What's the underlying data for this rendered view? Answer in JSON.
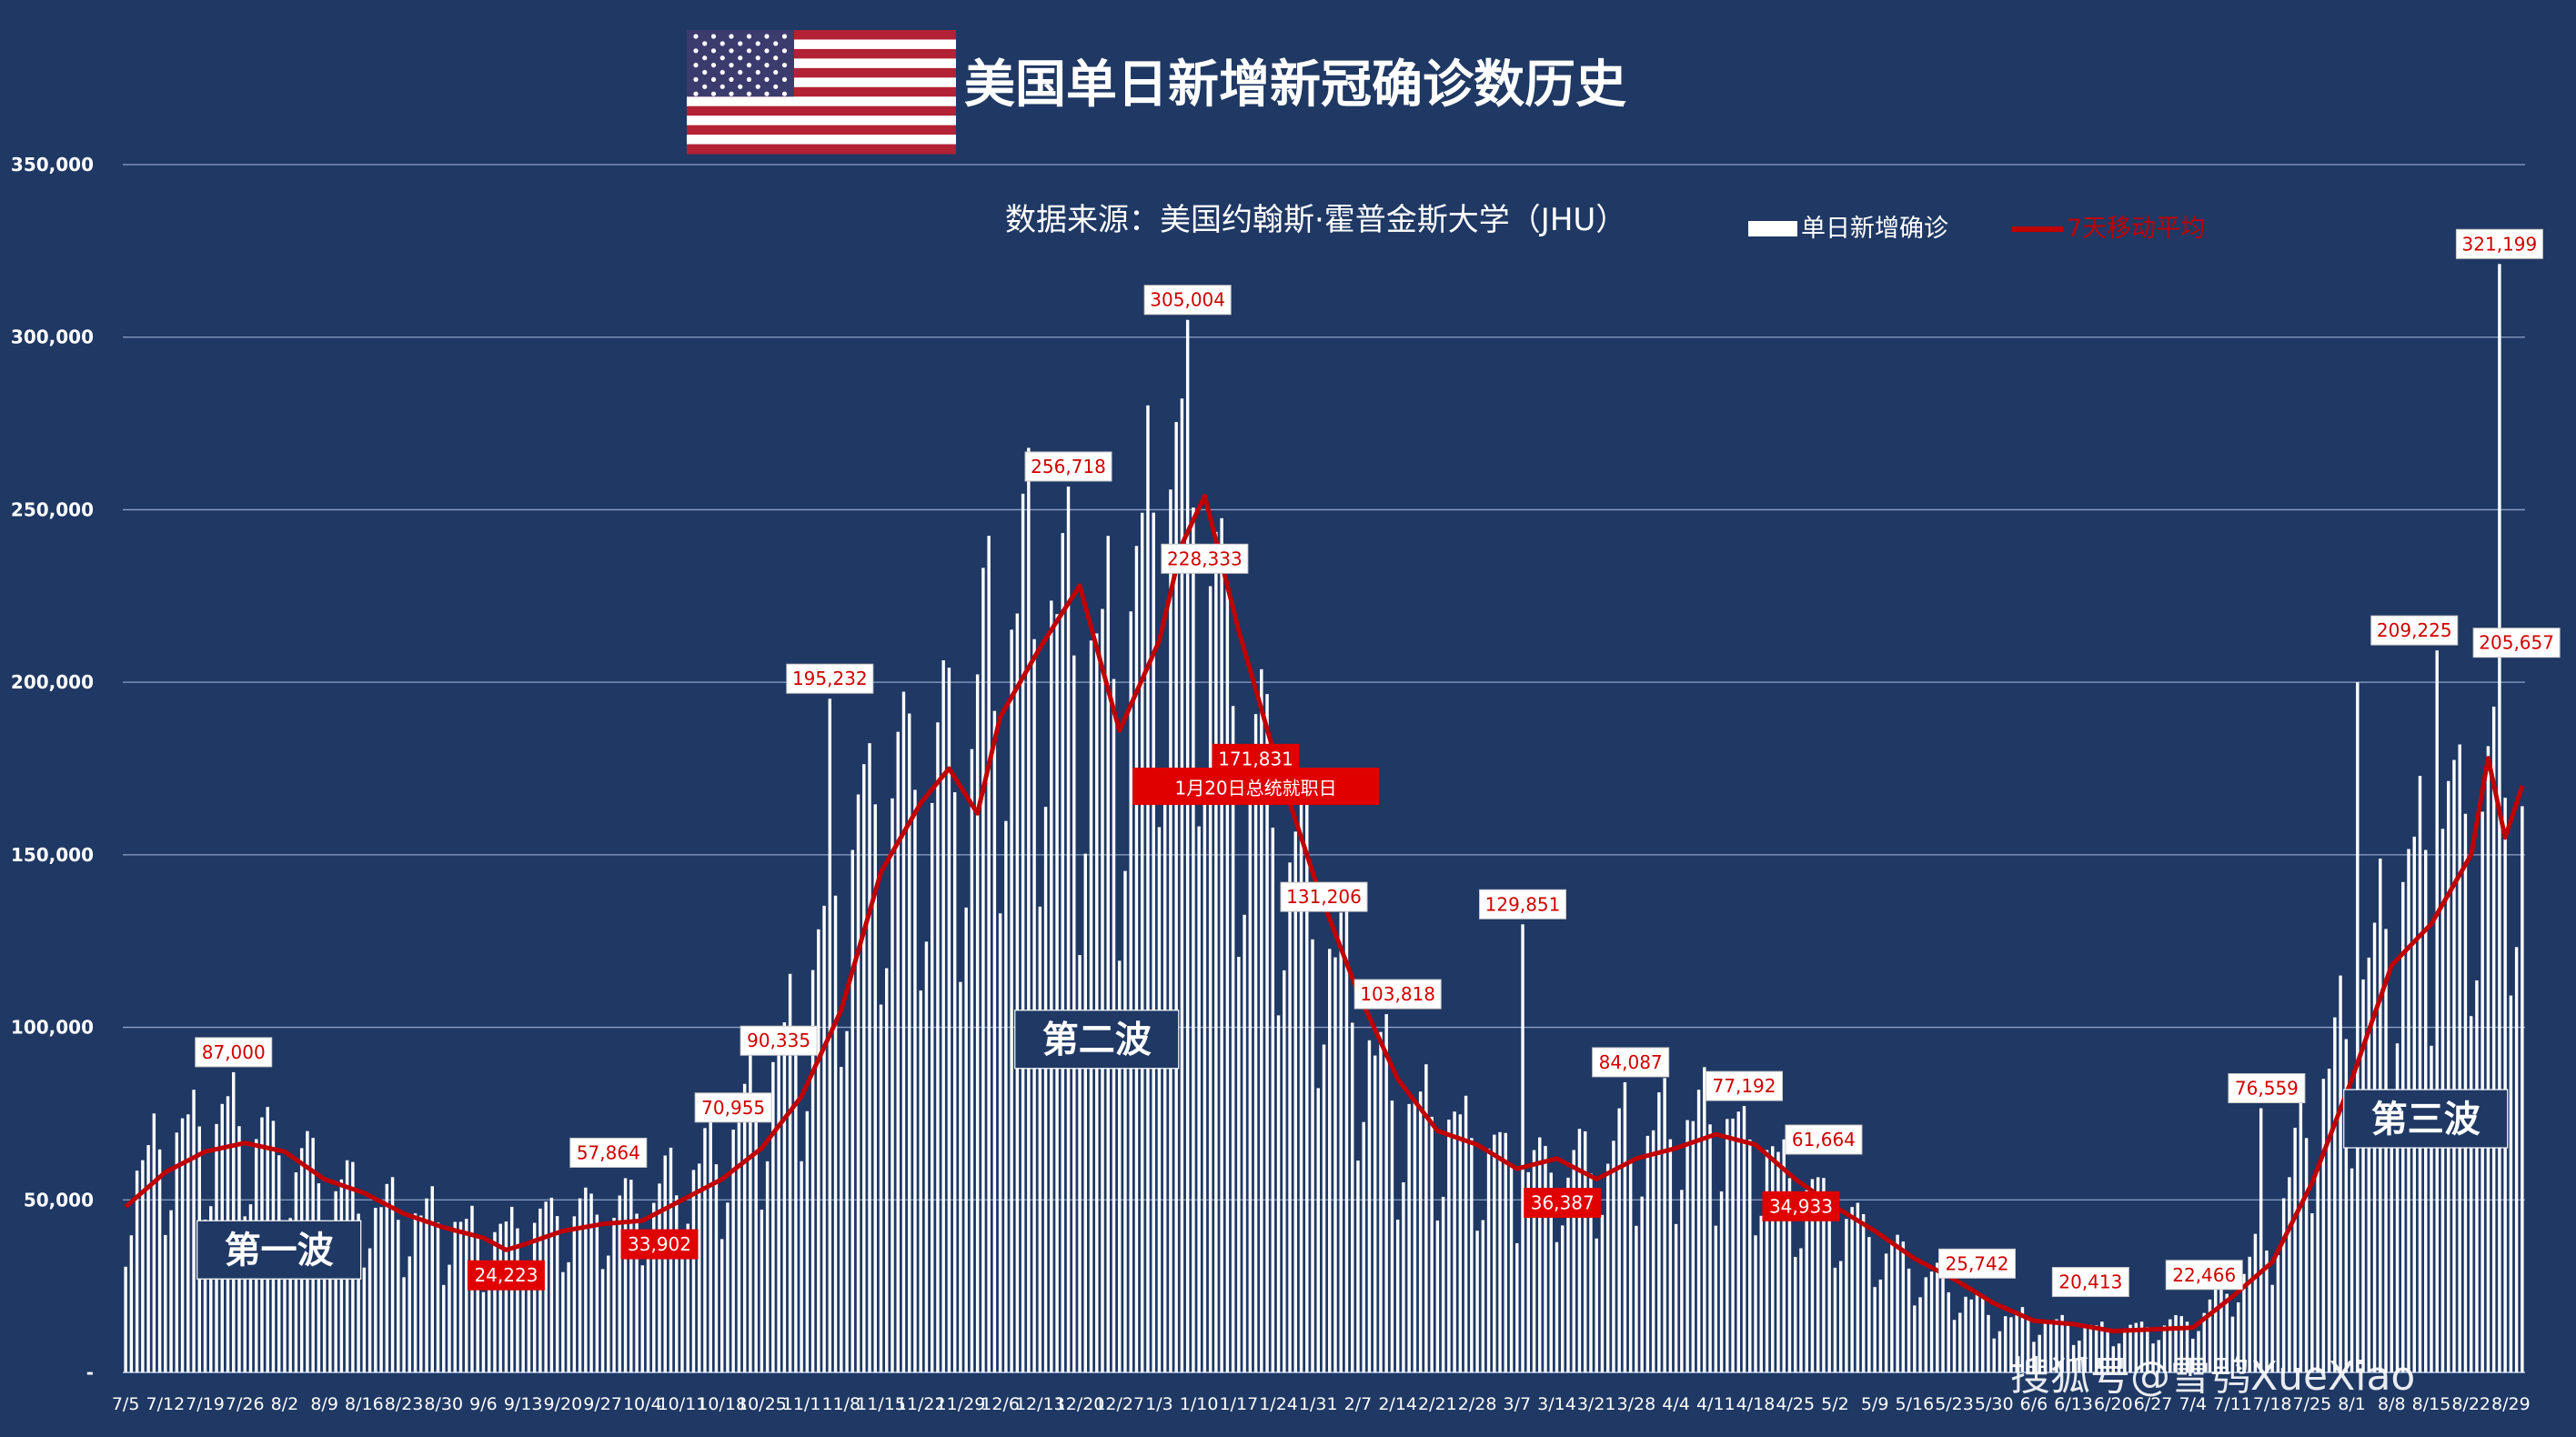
{
  "chart_data": {
    "type": "bar+line",
    "title": "美国单日新增新冠确诊数历史",
    "source": "数据来源：美国约翰斯·霍普金斯大学（JHU）",
    "ylim": [
      0,
      350000
    ],
    "y_ticks": [
      {
        "value": 0,
        "label": "-"
      },
      {
        "value": 50000,
        "label": "50,000"
      },
      {
        "value": 100000,
        "label": "100,000"
      },
      {
        "value": 150000,
        "label": "150,000"
      },
      {
        "value": 200000,
        "label": "200,000"
      },
      {
        "value": 250000,
        "label": "250,000"
      },
      {
        "value": 300000,
        "label": "300,000"
      },
      {
        "value": 350000,
        "label": "350,000"
      }
    ],
    "grid": true,
    "x_start": "2020-07-05",
    "x_end": "2021-08-31",
    "x_tick_labels": [
      "7/5",
      "7/12",
      "7/19",
      "7/26",
      "8/2",
      "8/9",
      "8/16",
      "8/23",
      "8/30",
      "9/6",
      "9/13",
      "9/20",
      "9/27",
      "10/4",
      "10/11",
      "10/18",
      "10/25",
      "11/1",
      "11/8",
      "11/15",
      "11/22",
      "11/29",
      "12/6",
      "12/13",
      "12/20",
      "12/27",
      "1/3",
      "1/10",
      "1/17",
      "1/24",
      "1/31",
      "2/7",
      "2/14",
      "2/21",
      "2/28",
      "3/7",
      "3/14",
      "3/21",
      "3/28",
      "4/4",
      "4/11",
      "4/18",
      "4/25",
      "5/2",
      "5/9",
      "5/16",
      "5/23",
      "5/30",
      "6/6",
      "6/13",
      "6/20",
      "6/27",
      "7/4",
      "7/11",
      "7/18",
      "7/25",
      "8/1",
      "8/8",
      "8/15",
      "8/22",
      "8/29"
    ],
    "series": [
      {
        "name": "单日新增确诊",
        "type": "bar",
        "color": "#ffffff",
        "weekly_levels": [
          {
            "date": "2020-07-05",
            "value": 52000
          },
          {
            "date": "2020-07-12",
            "value": 65000
          },
          {
            "date": "2020-07-19",
            "value": 70000
          },
          {
            "date": "2020-07-26",
            "value": 70000
          },
          {
            "date": "2020-08-02",
            "value": 62000
          },
          {
            "date": "2020-08-09",
            "value": 56000
          },
          {
            "date": "2020-08-16",
            "value": 48000
          },
          {
            "date": "2020-08-23",
            "value": 45000
          },
          {
            "date": "2020-08-30",
            "value": 43000
          },
          {
            "date": "2020-09-06",
            "value": 38000
          },
          {
            "date": "2020-09-13",
            "value": 41000
          },
          {
            "date": "2020-09-20",
            "value": 45000
          },
          {
            "date": "2020-09-27",
            "value": 46000
          },
          {
            "date": "2020-10-04",
            "value": 48000
          },
          {
            "date": "2020-10-11",
            "value": 56000
          },
          {
            "date": "2020-10-18",
            "value": 63000
          },
          {
            "date": "2020-10-25",
            "value": 80000
          },
          {
            "date": "2020-11-01",
            "value": 100000
          },
          {
            "date": "2020-11-08",
            "value": 140000
          },
          {
            "date": "2020-11-15",
            "value": 165000
          },
          {
            "date": "2020-11-22",
            "value": 170000
          },
          {
            "date": "2020-11-29",
            "value": 175000
          },
          {
            "date": "2020-12-06",
            "value": 210000
          },
          {
            "date": "2020-12-13",
            "value": 220000
          },
          {
            "date": "2020-12-20",
            "value": 205000
          },
          {
            "date": "2020-12-27",
            "value": 195000
          },
          {
            "date": "2021-01-03",
            "value": 250000
          },
          {
            "date": "2021-01-10",
            "value": 245000
          },
          {
            "date": "2021-01-17",
            "value": 185000
          },
          {
            "date": "2021-01-24",
            "value": 160000
          },
          {
            "date": "2021-01-31",
            "value": 130000
          },
          {
            "date": "2021-02-07",
            "value": 100000
          },
          {
            "date": "2021-02-14",
            "value": 75000
          },
          {
            "date": "2021-02-21",
            "value": 72000
          },
          {
            "date": "2021-02-28",
            "value": 65000
          },
          {
            "date": "2021-03-07",
            "value": 58000
          },
          {
            "date": "2021-03-14",
            "value": 58000
          },
          {
            "date": "2021-03-21",
            "value": 60000
          },
          {
            "date": "2021-03-28",
            "value": 67000
          },
          {
            "date": "2021-04-04",
            "value": 70000
          },
          {
            "date": "2021-04-11",
            "value": 72000
          },
          {
            "date": "2021-04-18",
            "value": 65000
          },
          {
            "date": "2021-04-25",
            "value": 53000
          },
          {
            "date": "2021-05-02",
            "value": 47000
          },
          {
            "date": "2021-05-09",
            "value": 38000
          },
          {
            "date": "2021-05-16",
            "value": 30000
          },
          {
            "date": "2021-05-23",
            "value": 24000
          },
          {
            "date": "2021-05-30",
            "value": 16000
          },
          {
            "date": "2021-06-06",
            "value": 15000
          },
          {
            "date": "2021-06-13",
            "value": 13000
          },
          {
            "date": "2021-06-20",
            "value": 12000
          },
          {
            "date": "2021-06-27",
            "value": 13000
          },
          {
            "date": "2021-07-04",
            "value": 15000
          },
          {
            "date": "2021-07-11",
            "value": 25000
          },
          {
            "date": "2021-07-18",
            "value": 40000
          },
          {
            "date": "2021-07-25",
            "value": 75000
          },
          {
            "date": "2021-08-01",
            "value": 100000
          },
          {
            "date": "2021-08-08",
            "value": 130000
          },
          {
            "date": "2021-08-15",
            "value": 150000
          },
          {
            "date": "2021-08-22",
            "value": 160000
          },
          {
            "date": "2021-08-31",
            "value": 170000
          }
        ],
        "spikes": [
          {
            "date": "2020-07-24",
            "value": 87000
          },
          {
            "date": "2020-11-06",
            "value": 195232
          },
          {
            "date": "2020-12-18",
            "value": 256718
          },
          {
            "date": "2021-01-08",
            "value": 305004
          },
          {
            "date": "2021-02-12",
            "value": 103818
          },
          {
            "date": "2021-03-08",
            "value": 129851
          },
          {
            "date": "2021-03-26",
            "value": 84087
          },
          {
            "date": "2021-04-16",
            "value": 77192
          },
          {
            "date": "2021-07-16",
            "value": 76559
          },
          {
            "date": "2021-08-02",
            "value": 200000
          },
          {
            "date": "2021-08-16",
            "value": 209225
          },
          {
            "date": "2021-08-27",
            "value": 321199
          }
        ]
      },
      {
        "name": "7天移动平均",
        "type": "line",
        "color": "#c00000",
        "points": [
          {
            "date": "2020-07-05",
            "value": 48000
          },
          {
            "date": "2020-07-12",
            "value": 58000
          },
          {
            "date": "2020-07-19",
            "value": 64000
          },
          {
            "date": "2020-07-26",
            "value": 66500
          },
          {
            "date": "2020-08-02",
            "value": 64000
          },
          {
            "date": "2020-08-09",
            "value": 56000
          },
          {
            "date": "2020-08-16",
            "value": 52000
          },
          {
            "date": "2020-08-23",
            "value": 46000
          },
          {
            "date": "2020-08-30",
            "value": 42000
          },
          {
            "date": "2020-09-06",
            "value": 39000
          },
          {
            "date": "2020-09-10",
            "value": 35500
          },
          {
            "date": "2020-09-13",
            "value": 37000
          },
          {
            "date": "2020-09-20",
            "value": 41000
          },
          {
            "date": "2020-09-27",
            "value": 43000
          },
          {
            "date": "2020-10-04",
            "value": 44000
          },
          {
            "date": "2020-10-11",
            "value": 50000
          },
          {
            "date": "2020-10-18",
            "value": 56000
          },
          {
            "date": "2020-10-25",
            "value": 65000
          },
          {
            "date": "2020-11-01",
            "value": 80000
          },
          {
            "date": "2020-11-08",
            "value": 105000
          },
          {
            "date": "2020-11-15",
            "value": 145000
          },
          {
            "date": "2020-11-22",
            "value": 165000
          },
          {
            "date": "2020-11-27",
            "value": 175000
          },
          {
            "date": "2020-12-02",
            "value": 162000
          },
          {
            "date": "2020-12-06",
            "value": 190000
          },
          {
            "date": "2020-12-13",
            "value": 210000
          },
          {
            "date": "2020-12-20",
            "value": 228000
          },
          {
            "date": "2020-12-27",
            "value": 186000
          },
          {
            "date": "2021-01-03",
            "value": 212000
          },
          {
            "date": "2021-01-07",
            "value": 240000
          },
          {
            "date": "2021-01-11",
            "value": 254000
          },
          {
            "date": "2021-01-17",
            "value": 215000
          },
          {
            "date": "2021-01-24",
            "value": 175000
          },
          {
            "date": "2021-01-31",
            "value": 140000
          },
          {
            "date": "2021-02-07",
            "value": 110000
          },
          {
            "date": "2021-02-14",
            "value": 85000
          },
          {
            "date": "2021-02-21",
            "value": 70000
          },
          {
            "date": "2021-02-28",
            "value": 66000
          },
          {
            "date": "2021-03-07",
            "value": 59000
          },
          {
            "date": "2021-03-14",
            "value": 62000
          },
          {
            "date": "2021-03-21",
            "value": 56000
          },
          {
            "date": "2021-03-28",
            "value": 62000
          },
          {
            "date": "2021-04-04",
            "value": 65000
          },
          {
            "date": "2021-04-11",
            "value": 69000
          },
          {
            "date": "2021-04-18",
            "value": 66000
          },
          {
            "date": "2021-04-25",
            "value": 56000
          },
          {
            "date": "2021-05-02",
            "value": 48000
          },
          {
            "date": "2021-05-09",
            "value": 41000
          },
          {
            "date": "2021-05-16",
            "value": 33000
          },
          {
            "date": "2021-05-23",
            "value": 27000
          },
          {
            "date": "2021-05-30",
            "value": 20000
          },
          {
            "date": "2021-06-06",
            "value": 15000
          },
          {
            "date": "2021-06-13",
            "value": 14000
          },
          {
            "date": "2021-06-20",
            "value": 12000
          },
          {
            "date": "2021-06-27",
            "value": 12500
          },
          {
            "date": "2021-07-04",
            "value": 13000
          },
          {
            "date": "2021-07-11",
            "value": 22000
          },
          {
            "date": "2021-07-18",
            "value": 32000
          },
          {
            "date": "2021-07-25",
            "value": 55000
          },
          {
            "date": "2021-08-01",
            "value": 85000
          },
          {
            "date": "2021-08-08",
            "value": 118000
          },
          {
            "date": "2021-08-15",
            "value": 130000
          },
          {
            "date": "2021-08-22",
            "value": 150000
          },
          {
            "date": "2021-08-25",
            "value": 178000
          },
          {
            "date": "2021-08-28",
            "value": 155000
          },
          {
            "date": "2021-08-31",
            "value": 170000
          }
        ]
      }
    ],
    "annotations": [
      {
        "date": "2020-07-24",
        "value": 87000,
        "label": "87,000",
        "style": "white"
      },
      {
        "date": "2020-09-10",
        "value": 35000,
        "label": "24,223",
        "style": "red",
        "below": true
      },
      {
        "date": "2020-09-28",
        "value": 57864,
        "label": "57,864",
        "style": "white"
      },
      {
        "date": "2020-10-07",
        "value": 44000,
        "label": "33,902",
        "style": "red",
        "below": true
      },
      {
        "date": "2020-10-20",
        "value": 70955,
        "label": "70,955",
        "style": "white"
      },
      {
        "date": "2020-10-28",
        "value": 90335,
        "label": "90,335",
        "style": "white"
      },
      {
        "date": "2020-11-06",
        "value": 195232,
        "label": "195,232",
        "style": "white"
      },
      {
        "date": "2020-12-18",
        "value": 256718,
        "label": "256,718",
        "style": "white"
      },
      {
        "date": "2021-01-08",
        "value": 305004,
        "label": "305,004",
        "style": "white"
      },
      {
        "date": "2021-01-11",
        "value": 230000,
        "label": "228,333",
        "style": "white"
      },
      {
        "date": "2021-01-20",
        "value": 172000,
        "label": "171,831",
        "style": "red"
      },
      {
        "date": "2021-01-20",
        "value": 163000,
        "label": "1月20日总统就职日",
        "style": "red",
        "big": true
      },
      {
        "date": "2021-02-01",
        "value": 132000,
        "label": "131,206",
        "style": "white"
      },
      {
        "date": "2021-02-14",
        "value": 103818,
        "label": "103,818",
        "style": "white"
      },
      {
        "date": "2021-03-08",
        "value": 129851,
        "label": "129,851",
        "style": "white"
      },
      {
        "date": "2021-03-15",
        "value": 56000,
        "label": "36,387",
        "style": "red",
        "below": true
      },
      {
        "date": "2021-03-27",
        "value": 84087,
        "label": "84,087",
        "style": "white"
      },
      {
        "date": "2021-04-16",
        "value": 77192,
        "label": "77,192",
        "style": "white"
      },
      {
        "date": "2021-04-26",
        "value": 55000,
        "label": "34,933",
        "style": "red",
        "below": true
      },
      {
        "date": "2021-04-30",
        "value": 61664,
        "label": "61,664",
        "style": "white"
      },
      {
        "date": "2021-05-27",
        "value": 25742,
        "label": "25,742",
        "style": "white"
      },
      {
        "date": "2021-06-16",
        "value": 20413,
        "label": "20,413",
        "style": "white"
      },
      {
        "date": "2021-07-06",
        "value": 22466,
        "label": "22,466",
        "style": "white"
      },
      {
        "date": "2021-07-17",
        "value": 76559,
        "label": "76,559",
        "style": "white"
      },
      {
        "date": "2021-08-12",
        "value": 209225,
        "label": "209,225",
        "style": "white"
      },
      {
        "date": "2021-08-27",
        "value": 321199,
        "label": "321,199",
        "style": "white"
      },
      {
        "date": "2021-08-30",
        "value": 205657,
        "label": "205,657",
        "style": "white"
      }
    ],
    "waves": [
      {
        "date": "2020-08-01",
        "value": 35000,
        "label": "第一波"
      },
      {
        "date": "2020-12-23",
        "value": 96000,
        "label": "第二波"
      },
      {
        "date": "2021-08-14",
        "value": 73000,
        "label": "第三波"
      }
    ],
    "legend_position": "top-right"
  },
  "watermark": "搜狐号@雪鸮XueXiao",
  "colors": {
    "background": "#1f3864",
    "bar": "#ffffff",
    "line": "#c00000",
    "grid": "#8ea2c6"
  },
  "icons": {
    "flag": "us-flag-icon"
  }
}
